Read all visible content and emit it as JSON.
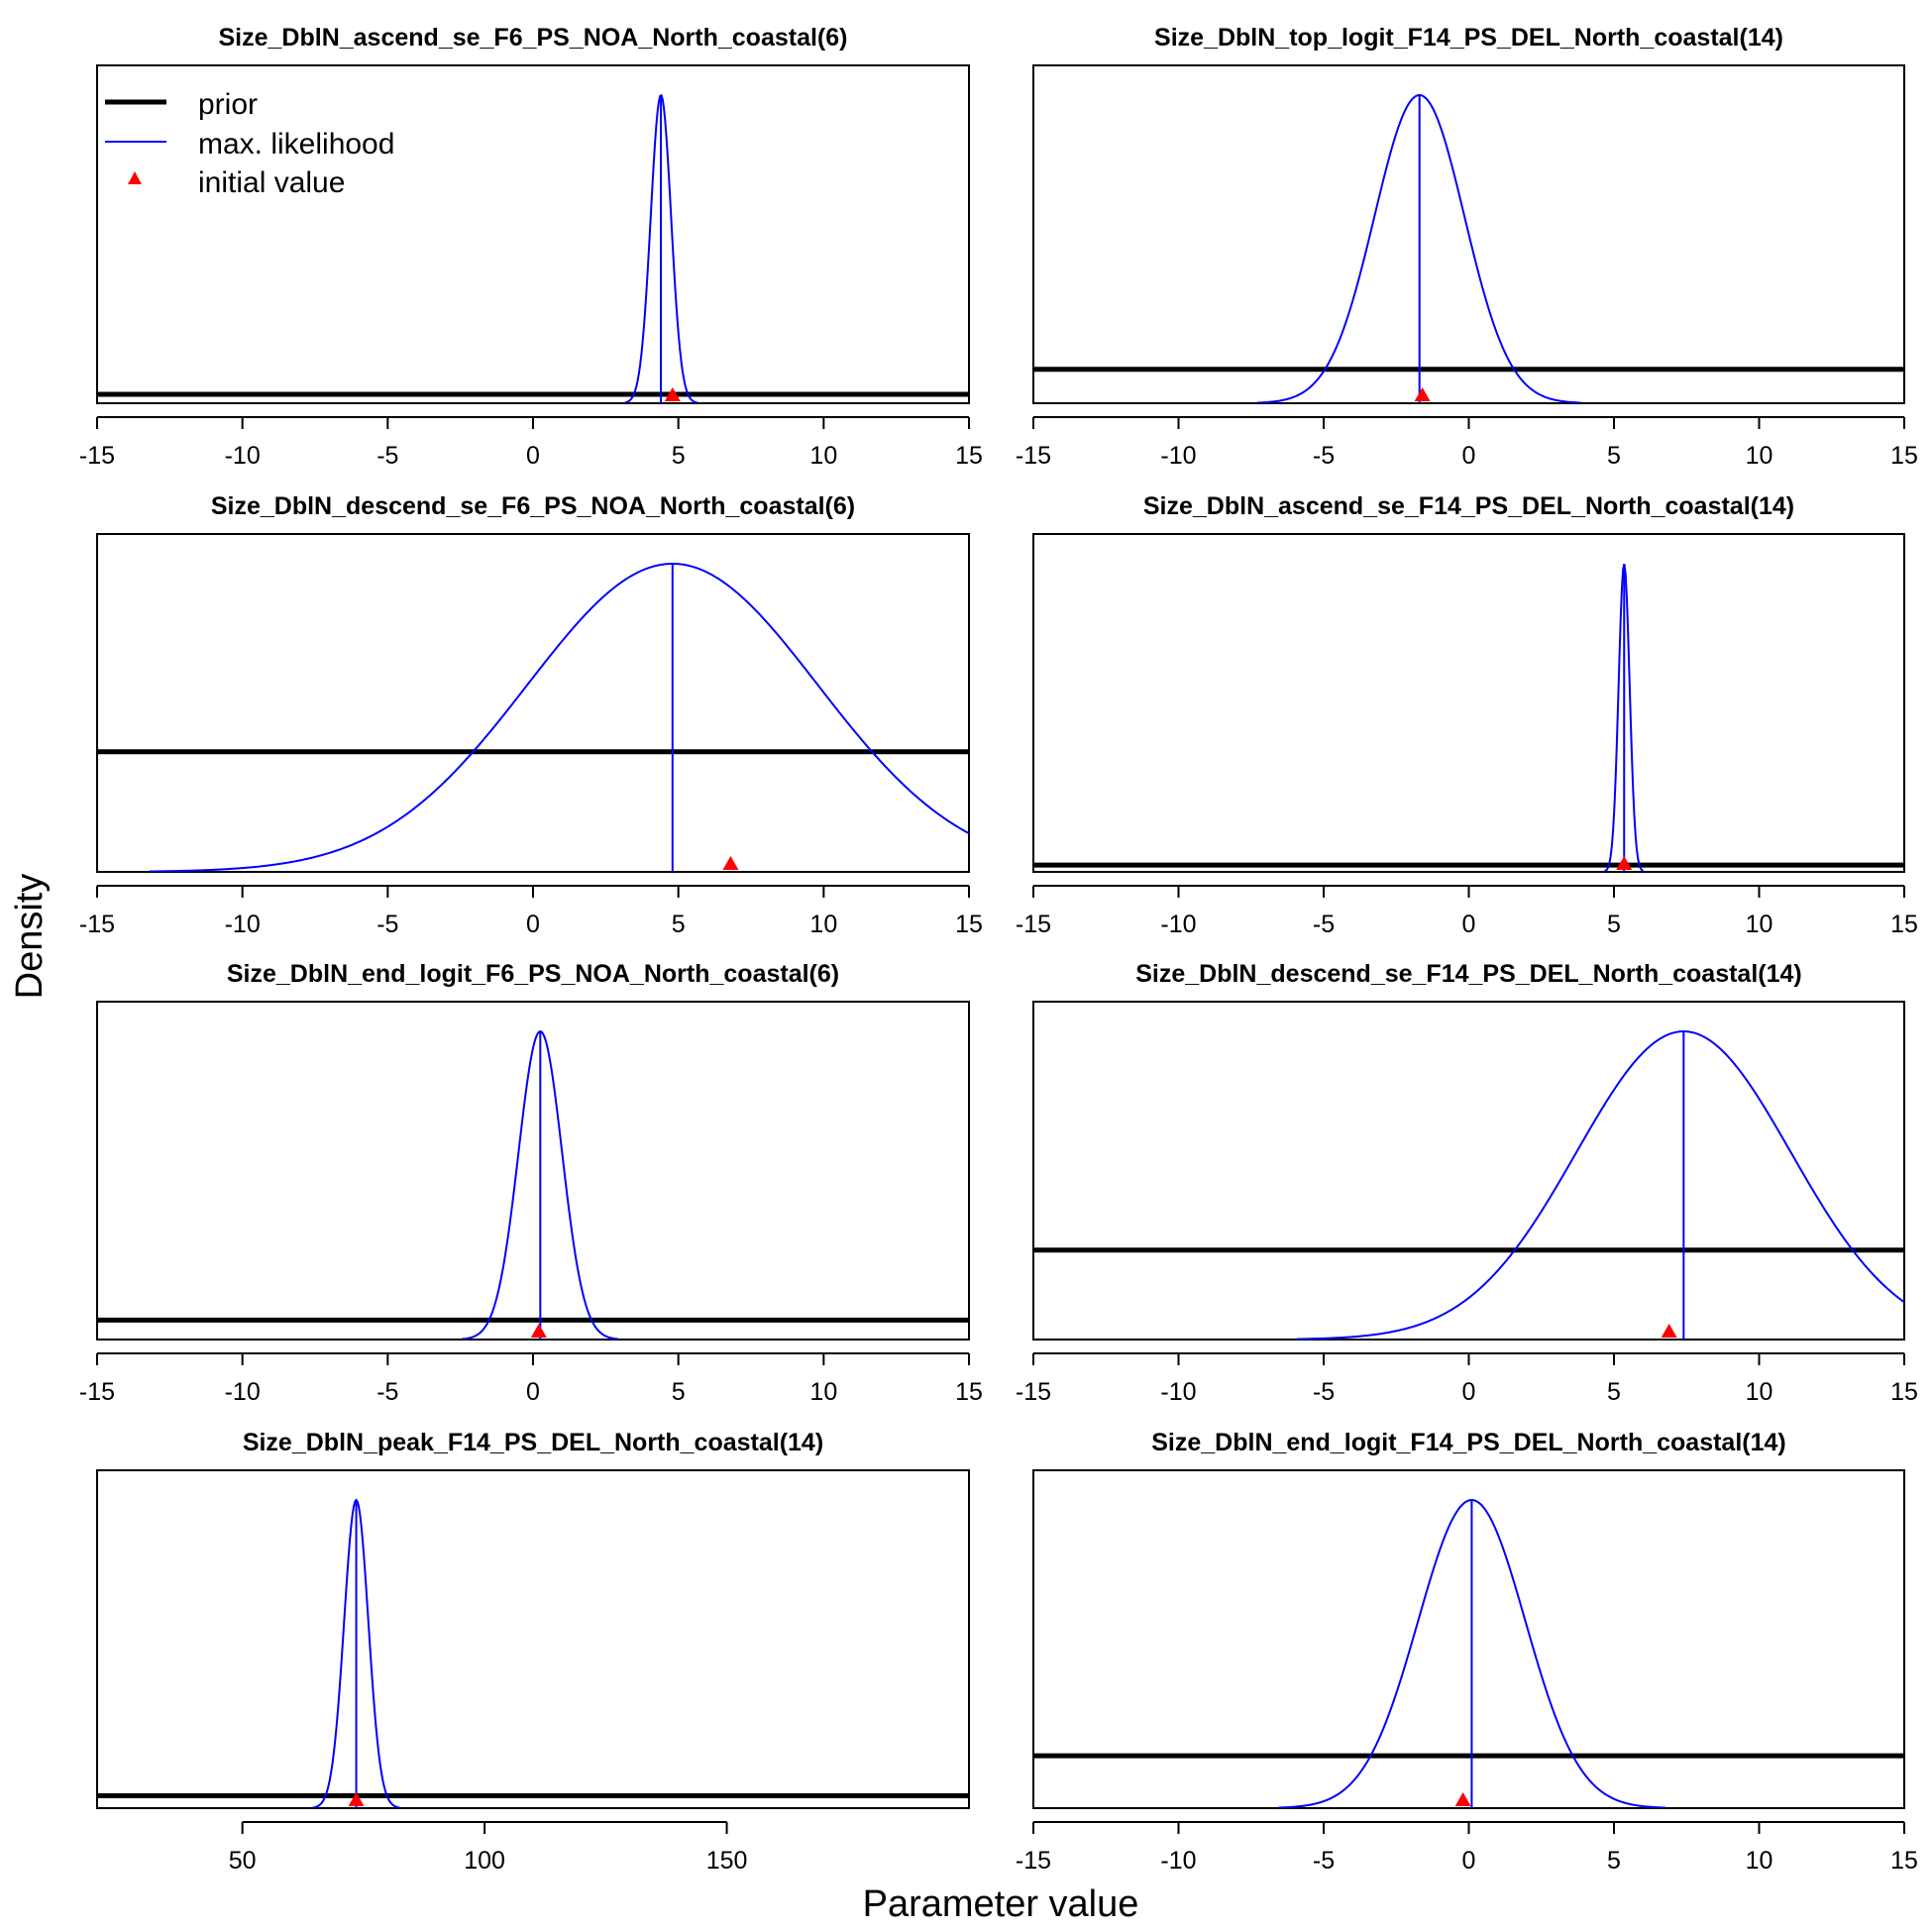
{
  "figure": {
    "ylabel": "Density",
    "xlabel": "Parameter value",
    "legend": {
      "placement": "top-left of first panel",
      "entries": [
        {
          "label": "prior",
          "style": "thick-black-line"
        },
        {
          "label": "max. likelihood",
          "style": "thin-blue-line"
        },
        {
          "label": "initial value",
          "style": "red-triangle"
        }
      ]
    },
    "colors": {
      "prior": "#000000",
      "mle": "#0000ff",
      "initial": "#ff0000"
    }
  },
  "chart_data": [
    {
      "type": "line",
      "title": "Size_DblN_ascend_se_F6_PS_NOA_North_coastal(6)",
      "xlim": [
        -15,
        15
      ],
      "xticks": [
        -15,
        -10,
        -5,
        0,
        5,
        10,
        15
      ],
      "prior_level": 0.029,
      "mle": {
        "mean": 4.4,
        "sd": 0.35
      },
      "initial_value": 4.8
    },
    {
      "type": "line",
      "title": "Size_DblN_top_logit_F14_PS_DEL_North_coastal(14)",
      "xlim": [
        -15,
        15
      ],
      "xticks": [
        -15,
        -10,
        -5,
        0,
        5,
        10,
        15
      ],
      "prior_level": 0.11,
      "mle": {
        "mean": -1.7,
        "sd": 1.55
      },
      "initial_value": -1.6
    },
    {
      "type": "line",
      "title": "Size_DblN_descend_se_F6_PS_NOA_North_coastal(6)",
      "xlim": [
        -15,
        15
      ],
      "xticks": [
        -15,
        -10,
        -5,
        0,
        5,
        10,
        15
      ],
      "prior_level": 0.39,
      "mle": {
        "mean": 4.8,
        "sd": 5.0
      },
      "initial_value": 6.8
    },
    {
      "type": "line",
      "title": "Size_DblN_ascend_se_F14_PS_DEL_North_coastal(14)",
      "xlim": [
        -15,
        15
      ],
      "xticks": [
        -15,
        -10,
        -5,
        0,
        5,
        10,
        15
      ],
      "prior_level": 0.022,
      "mle": {
        "mean": 5.35,
        "sd": 0.19
      },
      "initial_value": 5.35
    },
    {
      "type": "line",
      "title": "Size_DblN_end_logit_F6_PS_NOA_North_coastal(6)",
      "xlim": [
        -15,
        15
      ],
      "xticks": [
        -15,
        -10,
        -5,
        0,
        5,
        10,
        15
      ],
      "prior_level": 0.063,
      "mle": {
        "mean": 0.25,
        "sd": 0.75
      },
      "initial_value": 0.2
    },
    {
      "type": "line",
      "title": "Size_DblN_descend_se_F14_PS_DEL_North_coastal(14)",
      "xlim": [
        -15,
        15
      ],
      "xticks": [
        -15,
        -10,
        -5,
        0,
        5,
        10,
        15
      ],
      "prior_level": 0.29,
      "mle": {
        "mean": 7.4,
        "sd": 3.7
      },
      "initial_value": 6.9
    },
    {
      "type": "line",
      "title": "Size_DblN_peak_F14_PS_DEL_North_coastal(14)",
      "xlim": [
        20,
        200
      ],
      "xticks": [
        50,
        100,
        150
      ],
      "prior_level": 0.04,
      "mle": {
        "mean": 73.5,
        "sd": 2.5
      },
      "initial_value": 73.5
    },
    {
      "type": "line",
      "title": "Size_DblN_end_logit_F14_PS_DEL_North_coastal(14)",
      "xlim": [
        -15,
        15
      ],
      "xticks": [
        -15,
        -10,
        -5,
        0,
        5,
        10,
        15
      ],
      "prior_level": 0.17,
      "mle": {
        "mean": 0.1,
        "sd": 1.85
      },
      "initial_value": -0.2
    }
  ]
}
